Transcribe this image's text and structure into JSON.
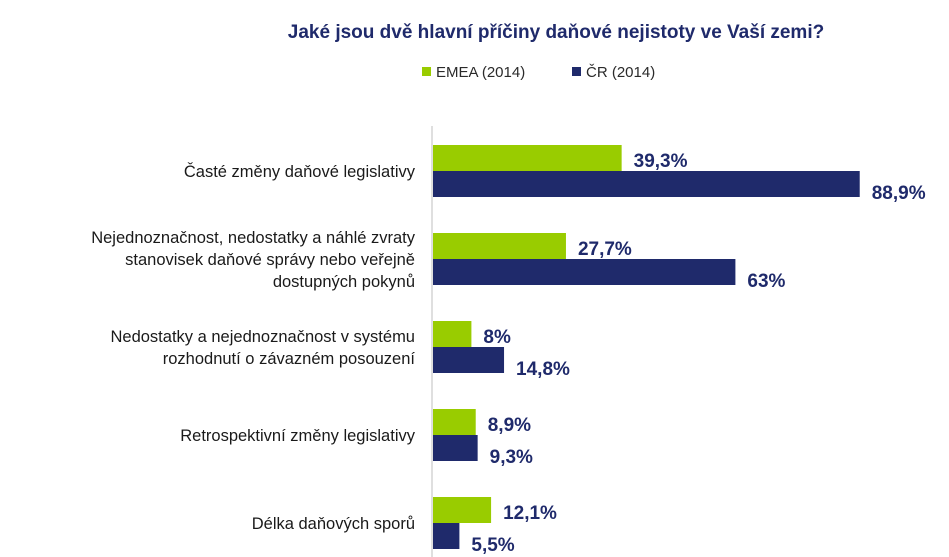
{
  "chart_data": {
    "type": "bar",
    "orientation": "horizontal",
    "title": "Jaké jsou dvě hlavní příčiny daňové nejistoty ve Vaší zemi?",
    "legend_position": "top",
    "categories": [
      [
        "Časté změny daňové legislativy"
      ],
      [
        "Nejednoznačnost, nedostatky a náhlé zvraty",
        "stanovisek daňové správy nebo veřejně",
        "dostupných pokynů"
      ],
      [
        "Nedostatky a nejednoznačnost v systému",
        "rozhodnutí o závazném posouzení"
      ],
      [
        "Retrospektivní změny legislativy"
      ],
      [
        "Délka daňových sporů"
      ]
    ],
    "series": [
      {
        "name": "EMEA (2014)",
        "color": "#99cc00",
        "values": [
          39.3,
          27.7,
          8,
          8.9,
          12.1
        ],
        "labels": [
          "39,3%",
          "27,7%",
          "8%",
          "8,9%",
          "12,1%"
        ]
      },
      {
        "name": "ČR (2014)",
        "color": "#1f2a6b",
        "values": [
          88.9,
          63,
          14.8,
          9.3,
          5.5
        ],
        "labels": [
          "88,9%",
          "63%",
          "14,8%",
          "9,3%",
          "5,5%"
        ]
      }
    ],
    "xlim": [
      0,
      100
    ],
    "grid": false
  }
}
